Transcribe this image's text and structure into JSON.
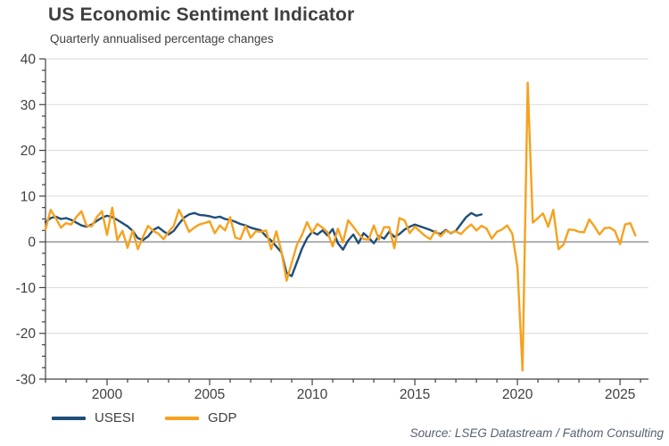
{
  "chart_data": {
    "type": "line",
    "title": "US Economic Sentiment Indicator",
    "subtitle": "Quarterly annualised percentage changes",
    "source": "Source: LSEG Datastream / Fathom Consulting",
    "x_axis": {
      "min": 1997,
      "max": 2026.3,
      "tick_labels": [
        2000,
        2005,
        2010,
        2015,
        2020,
        2025
      ],
      "minor_tick_step": 1
    },
    "y_axis": {
      "min": -30,
      "max": 40,
      "tick_labels": [
        40,
        30,
        20,
        10,
        0,
        -10,
        -20,
        -30
      ],
      "major_step": 10,
      "minor_tick_step": 2.5
    },
    "grid": {
      "on": true,
      "color": "#d9d9d9",
      "zero_line_color": "#808080",
      "axis_color": "#404040",
      "label_color": "#404040"
    },
    "legend_position": "bottom-left",
    "series": [
      {
        "name": "USESI",
        "color": "#1F4E79",
        "x_start": 1997.0,
        "x_step": 0.25,
        "values": [
          4.3,
          5.2,
          5.5,
          5.0,
          5.2,
          4.8,
          4.2,
          3.6,
          3.3,
          3.8,
          4.6,
          5.3,
          5.7,
          5.4,
          4.8,
          4.1,
          3.4,
          2.4,
          0.8,
          0.4,
          1.2,
          2.6,
          3.2,
          2.3,
          1.6,
          2.4,
          3.9,
          5.3,
          6.0,
          6.3,
          5.9,
          5.8,
          5.6,
          5.3,
          5.5,
          5.0,
          4.8,
          4.4,
          3.9,
          3.6,
          3.1,
          2.8,
          2.5,
          1.2,
          0.3,
          -1.0,
          -2.3,
          -6.8,
          -7.5,
          -4.5,
          -1.5,
          0.8,
          2.2,
          1.6,
          2.5,
          1.4,
          2.8,
          -0.3,
          -1.7,
          0.3,
          1.6,
          -0.3,
          1.9,
          0.9,
          -0.3,
          1.3,
          0.7,
          2.2,
          1.1,
          1.7,
          2.7,
          3.3,
          3.8,
          3.4,
          3.0,
          2.6,
          2.1,
          1.7,
          2.6,
          1.9,
          2.4,
          3.9,
          5.4,
          6.3,
          5.7,
          6.0
        ]
      },
      {
        "name": "GDP",
        "color": "#F7A11E",
        "x_start": 1997.0,
        "x_step": 0.25,
        "values": [
          2.7,
          7.0,
          5.2,
          3.1,
          4.1,
          3.8,
          5.4,
          6.7,
          3.5,
          3.4,
          5.4,
          6.7,
          1.5,
          7.5,
          0.4,
          2.4,
          -1.3,
          2.5,
          -1.6,
          1.1,
          3.5,
          2.4,
          1.8,
          0.6,
          2.2,
          3.5,
          7.0,
          4.7,
          2.2,
          3.1,
          3.8,
          4.1,
          4.5,
          1.9,
          3.6,
          2.5,
          5.4,
          0.9,
          0.6,
          3.5,
          0.9,
          2.3,
          2.2,
          2.5,
          -1.6,
          2.3,
          -2.1,
          -8.5,
          -4.6,
          -0.7,
          1.5,
          4.3,
          2.0,
          3.9,
          3.1,
          2.1,
          -1.0,
          2.9,
          -0.1,
          4.7,
          3.3,
          1.8,
          0.6,
          0.5,
          3.6,
          0.5,
          3.2,
          3.2,
          -1.4,
          5.2,
          4.7,
          1.9,
          3.3,
          2.3,
          1.3,
          0.6,
          2.4,
          1.2,
          2.4,
          2.0,
          2.3,
          1.7,
          2.9,
          3.8,
          2.5,
          3.5,
          2.9,
          0.7,
          2.2,
          2.7,
          3.6,
          1.8,
          -5.5,
          -28.1,
          34.8,
          4.2,
          5.2,
          6.2,
          3.3,
          7.0,
          -1.6,
          -0.6,
          2.7,
          2.6,
          2.2,
          2.1,
          4.9,
          3.4,
          1.6,
          3.0,
          3.1,
          2.4,
          -0.5,
          3.8,
          4.1,
          1.4
        ]
      }
    ]
  }
}
